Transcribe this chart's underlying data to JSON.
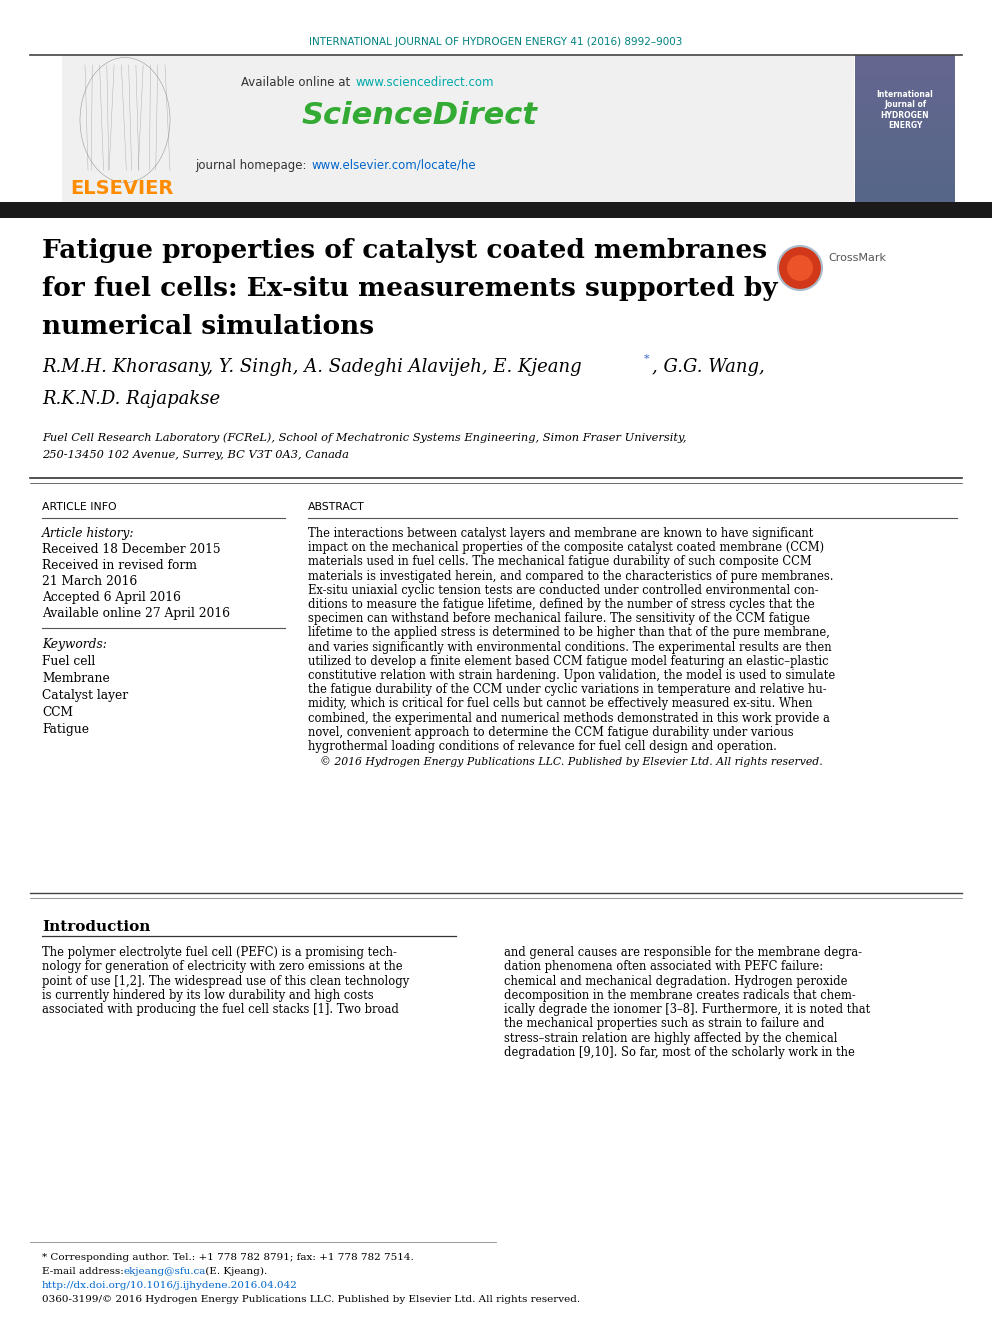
{
  "journal_header": "INTERNATIONAL JOURNAL OF HYDROGEN ENERGY 41 (2016) 8992–9003",
  "journal_header_color": "#008080",
  "sciencedirect_url": "www.sciencedirect.com",
  "sciencedirect_url_color": "#00AAAA",
  "sciencedirect_logo_color": "#33AA33",
  "sciencedirect_logo_text": "ScienceDirect",
  "journal_homepage_url": "www.elsevier.com/locate/he",
  "journal_homepage_url_color": "#0066CC",
  "elsevier_text": "ELSEVIER",
  "elsevier_color": "#FF8C00",
  "article_info_header": "ARTICLE INFO",
  "abstract_header": "ABSTRACT",
  "article_history_label": "Article history:",
  "received_1": "Received 18 December 2015",
  "received_2": "Received in revised form",
  "received_2b": "21 March 2016",
  "accepted": "Accepted 6 April 2016",
  "available_online": "Available online 27 April 2016",
  "keywords_label": "Keywords:",
  "keyword_1": "Fuel cell",
  "keyword_2": "Membrane",
  "keyword_3": "Catalyst layer",
  "keyword_4": "CCM",
  "keyword_5": "Fatigue",
  "abstract_text": "The interactions between catalyst layers and membrane are known to have significant\nimpact on the mechanical properties of the composite catalyst coated membrane (CCM)\nmaterials used in fuel cells. The mechanical fatigue durability of such composite CCM\nmaterials is investigated herein, and compared to the characteristics of pure membranes.\nEx-situ uniaxial cyclic tension tests are conducted under controlled environmental con-\nditions to measure the fatigue lifetime, defined by the number of stress cycles that the\nspecimen can withstand before mechanical failure. The sensitivity of the CCM fatigue\nlifetime to the applied stress is determined to be higher than that of the pure membrane,\nand varies significantly with environmental conditions. The experimental results are then\nutilized to develop a finite element based CCM fatigue model featuring an elastic–plastic\nconstitutive relation with strain hardening. Upon validation, the model is used to simulate\nthe fatigue durability of the CCM under cyclic variations in temperature and relative hu-\nmidity, which is critical for fuel cells but cannot be effectively measured ex-situ. When\ncombined, the experimental and numerical methods demonstrated in this work provide a\nnovel, convenient approach to determine the CCM fatigue durability under various\nhygrothermal loading conditions of relevance for fuel cell design and operation.",
  "copyright_text": "© 2016 Hydrogen Energy Publications LLC. Published by Elsevier Ltd. All rights reserved.",
  "intro_header": "Introduction",
  "intro_text_left": "The polymer electrolyte fuel cell (PEFC) is a promising tech-\nnology for generation of electricity with zero emissions at the\npoint of use [1,2]. The widespread use of this clean technology\nis currently hindered by its low durability and high costs\nassociated with producing the fuel cell stacks [1]. Two broad",
  "intro_text_right": "and general causes are responsible for the membrane degra-\ndation phenomena often associated with PEFC failure:\nchemical and mechanical degradation. Hydrogen peroxide\ndecomposition in the membrane creates radicals that chem-\nically degrade the ionomer [3–8]. Furthermore, it is noted that\nthe mechanical properties such as strain to failure and\nstress–strain relation are highly affected by the chemical\ndegradation [9,10]. So far, most of the scholarly work in the",
  "footnote_1": "* Corresponding author. Tel.: +1 778 782 8791; fax: +1 778 782 7514.",
  "footnote_3": "http://dx.doi.org/10.1016/j.ijhydene.2016.04.042",
  "footnote_4": "0360-3199/© 2016 Hydrogen Energy Publications LLC. Published by Elsevier Ltd. All rights reserved.",
  "link_color": "#0066CC",
  "bg_color": "#FFFFFF",
  "text_color": "#000000",
  "header_bar_color": "#1a1a1a",
  "gray_box_color": "#F0F0F0"
}
